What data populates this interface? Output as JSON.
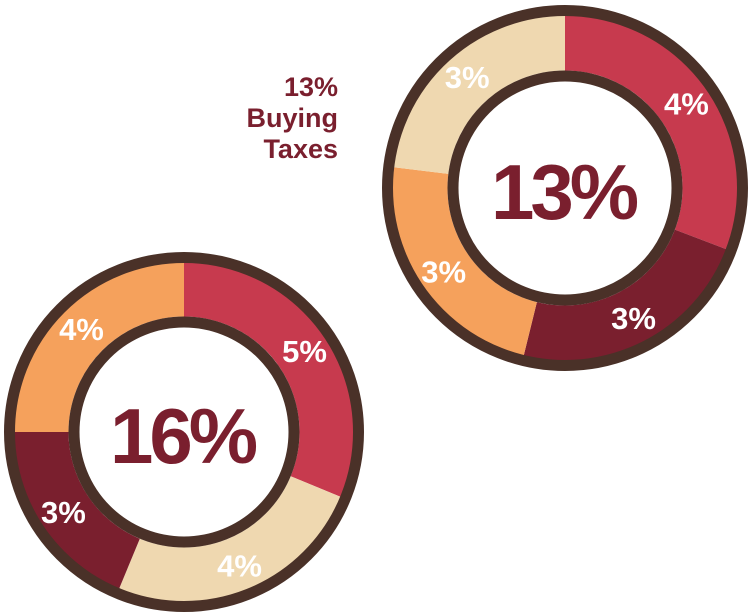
{
  "caption": {
    "line1": "13%",
    "line2": "Buying",
    "line3": "Taxes"
  },
  "chart_data": [
    {
      "type": "pie",
      "center_label": "13%",
      "slices": [
        {
          "label": "4%",
          "value": 4,
          "color": "#c73a4e"
        },
        {
          "label": "3%",
          "value": 3,
          "color": "#7a1f2e"
        },
        {
          "label": "3%",
          "value": 3,
          "color": "#f5a15c"
        },
        {
          "label": "3%",
          "value": 3,
          "color": "#efd8b0"
        }
      ]
    },
    {
      "type": "pie",
      "center_label": "16%",
      "slices": [
        {
          "label": "5%",
          "value": 5,
          "color": "#c73a4e"
        },
        {
          "label": "4%",
          "value": 4,
          "color": "#efd8b0"
        },
        {
          "label": "3%",
          "value": 3,
          "color": "#7a1f2e"
        },
        {
          "label": "4%",
          "value": 4,
          "color": "#f5a15c"
        }
      ]
    }
  ],
  "colors": {
    "ring_outline": "#4a3128",
    "center_text": "#7a1f2e",
    "inner_fill": "#ffffff"
  }
}
